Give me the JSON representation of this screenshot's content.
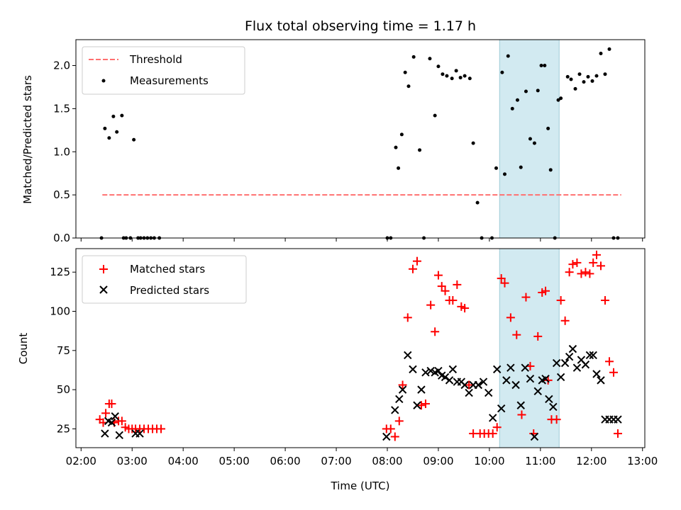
{
  "chart_data": [
    {
      "type": "scatter",
      "title": "Flux total observing time = 1.17 h",
      "xlabel": "",
      "ylabel": "Matched/Predicted stars",
      "ylim": [
        0,
        2.3
      ],
      "yticks": [
        0.0,
        0.5,
        1.0,
        1.5,
        2.0
      ],
      "ytick_labels": [
        "0.0",
        "0.5",
        "1.0",
        "1.5",
        "2.0"
      ],
      "grid": false,
      "legend_position": "upper-left",
      "shaded_region": {
        "x_start": "10:12",
        "x_end": "11:22",
        "color": "#add8e6"
      },
      "series": [
        {
          "name": "Threshold",
          "kind": "line",
          "style": "dashed",
          "color": "#ff7070",
          "x": [
            "02:25",
            "12:35"
          ],
          "y": [
            0.5,
            0.5
          ]
        },
        {
          "name": "Measurements",
          "kind": "scatter",
          "color": "#000000",
          "x": [
            "02:24",
            "02:28",
            "02:33",
            "02:38",
            "02:42",
            "02:48",
            "02:50",
            "02:53",
            "02:58",
            "03:02",
            "03:07",
            "03:10",
            "03:14",
            "03:18",
            "03:22",
            "03:26",
            "03:32",
            "08:00",
            "08:04",
            "08:10",
            "08:13",
            "08:17",
            "08:21",
            "08:25",
            "08:31",
            "08:38",
            "08:43",
            "08:50",
            "08:56",
            "09:00",
            "09:05",
            "09:10",
            "09:16",
            "09:21",
            "09:26",
            "09:31",
            "09:37",
            "09:41",
            "09:46",
            "09:51",
            "10:03",
            "10:08",
            "10:15",
            "10:18",
            "10:22",
            "10:27",
            "10:33",
            "10:37",
            "10:43",
            "10:48",
            "10:53",
            "10:57",
            "11:01",
            "11:05",
            "11:09",
            "11:12",
            "11:17",
            "11:21",
            "11:24",
            "11:32",
            "11:36",
            "11:41",
            "11:46",
            "11:51",
            "11:56",
            "12:01",
            "12:06",
            "12:11",
            "12:16",
            "12:21",
            "12:26",
            "12:31"
          ],
          "y": [
            0,
            1.27,
            1.16,
            1.41,
            1.23,
            1.42,
            0,
            0,
            0,
            1.14,
            0,
            0,
            0,
            0,
            0,
            0,
            0,
            0,
            0,
            1.05,
            0.81,
            1.2,
            1.92,
            1.76,
            2.1,
            1.02,
            0,
            2.08,
            1.42,
            1.99,
            1.9,
            1.88,
            1.85,
            1.94,
            1.86,
            1.88,
            1.85,
            1.1,
            0.41,
            0,
            0,
            0.81,
            1.92,
            0.74,
            2.11,
            1.5,
            1.6,
            0.82,
            1.7,
            1.15,
            1.1,
            1.71,
            2.0,
            2.0,
            1.27,
            0.79,
            0,
            1.6,
            1.62,
            1.87,
            1.84,
            1.73,
            1.9,
            1.81,
            1.87,
            1.82,
            1.88,
            2.14,
            1.9,
            2.19,
            0,
            0
          ]
        }
      ]
    },
    {
      "type": "scatter",
      "title": "",
      "xlabel": "Time (UTC)",
      "ylabel": "Count",
      "ylim": [
        13,
        140
      ],
      "yticks": [
        25,
        50,
        75,
        100,
        125
      ],
      "ytick_labels": [
        "25",
        "50",
        "75",
        "100",
        "125"
      ],
      "xticks": [
        "02:00",
        "03:00",
        "04:00",
        "05:00",
        "06:00",
        "07:00",
        "08:00",
        "09:00",
        "10:00",
        "11:00",
        "12:00",
        "13:00"
      ],
      "grid": false,
      "legend_position": "upper-left",
      "shaded_region": {
        "x_start": "10:12",
        "x_end": "11:22",
        "color": "#add8e6"
      },
      "series": [
        {
          "name": "Matched stars",
          "kind": "scatter",
          "marker": "plus",
          "color": "#ff0000",
          "x": [
            "02:22",
            "02:26",
            "02:29",
            "02:33",
            "02:36",
            "02:39",
            "02:44",
            "02:48",
            "02:52",
            "02:56",
            "03:00",
            "03:04",
            "03:09",
            "03:14",
            "03:19",
            "03:24",
            "03:29",
            "03:34",
            "07:59",
            "08:04",
            "08:09",
            "08:14",
            "08:18",
            "08:24",
            "08:30",
            "08:35",
            "08:40",
            "08:45",
            "08:51",
            "08:56",
            "09:00",
            "09:04",
            "09:08",
            "09:13",
            "09:17",
            "09:22",
            "09:27",
            "09:31",
            "09:36",
            "09:41",
            "09:49",
            "09:54",
            "09:59",
            "10:04",
            "10:09",
            "10:14",
            "10:18",
            "10:25",
            "10:32",
            "10:38",
            "10:43",
            "10:48",
            "10:52",
            "10:57",
            "11:02",
            "11:06",
            "11:09",
            "11:13",
            "11:19",
            "11:24",
            "11:29",
            "11:34",
            "11:38",
            "11:43",
            "11:48",
            "11:53",
            "11:58",
            "12:02",
            "12:06",
            "12:11",
            "12:16",
            "12:21",
            "12:26",
            "12:31"
          ],
          "y": [
            31,
            29,
            35,
            41,
            41,
            29,
            30,
            30,
            26,
            25,
            25,
            25,
            25,
            25,
            25,
            25,
            25,
            25,
            25,
            25,
            20,
            30,
            53,
            96,
            127,
            132,
            40,
            41,
            104,
            87,
            123,
            116,
            113,
            107,
            107,
            117,
            103,
            102,
            53,
            22,
            22,
            22,
            22,
            22,
            26,
            121,
            118,
            96,
            85,
            34,
            109,
            65,
            22,
            84,
            112,
            113,
            56,
            31,
            31,
            107,
            94,
            125,
            130,
            131,
            124,
            125,
            124,
            131,
            136,
            129,
            107,
            68,
            61,
            22
          ]
        },
        {
          "name": "Predicted stars",
          "kind": "scatter",
          "marker": "x",
          "color": "#000000",
          "x": [
            "02:28",
            "02:32",
            "02:36",
            "02:40",
            "02:45",
            "03:04",
            "03:09",
            "07:59",
            "08:09",
            "08:14",
            "08:18",
            "08:24",
            "08:30",
            "08:35",
            "08:40",
            "08:45",
            "08:51",
            "08:56",
            "09:00",
            "09:04",
            "09:08",
            "09:13",
            "09:17",
            "09:22",
            "09:27",
            "09:31",
            "09:36",
            "09:41",
            "09:47",
            "09:53",
            "09:59",
            "10:04",
            "10:09",
            "10:14",
            "10:20",
            "10:25",
            "10:31",
            "10:37",
            "10:42",
            "10:48",
            "10:53",
            "10:57",
            "11:02",
            "11:06",
            "11:10",
            "11:15",
            "11:19",
            "11:24",
            "11:29",
            "11:34",
            "11:38",
            "11:43",
            "11:48",
            "11:53",
            "11:58",
            "12:02",
            "12:06",
            "12:11",
            "12:16",
            "12:21",
            "12:26",
            "12:31"
          ],
          "y": [
            22,
            30,
            29,
            33,
            21,
            22,
            22,
            20,
            37,
            44,
            50,
            72,
            63,
            40,
            50,
            61,
            62,
            61,
            62,
            59,
            58,
            56,
            63,
            55,
            55,
            53,
            48,
            53,
            53,
            55,
            48,
            32,
            63,
            38,
            56,
            64,
            53,
            40,
            64,
            57,
            20,
            49,
            56,
            57,
            44,
            39,
            67,
            58,
            67,
            71,
            76,
            64,
            69,
            66,
            72,
            72,
            60,
            56,
            31,
            31,
            31,
            31
          ]
        }
      ],
      "legend": [
        {
          "name": "Matched stars"
        },
        {
          "name": "Predicted stars"
        }
      ]
    }
  ]
}
